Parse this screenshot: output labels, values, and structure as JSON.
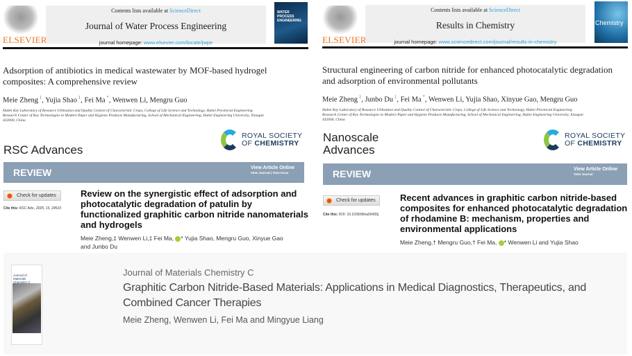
{
  "panels": {
    "jwpe": {
      "publisher": "ELSEVIER",
      "contents_prefix": "Contents lists available at ",
      "sciencedirect": "ScienceDirect",
      "journal": "Journal of Water Process Engineering",
      "homepage_label": "journal homepage: ",
      "homepage_url": "www.elsevier.com/locate/jwpe",
      "cover_text": "WATER PROCESS ENGINEERING",
      "title": "Adsorption of antibiotics in medical wastewater by MOF-based hydrogel composites: A comprehensive review",
      "authors": [
        {
          "name": "Meie Zheng",
          "mark": "1"
        },
        {
          "name": "Yujia Shao",
          "mark": "1"
        },
        {
          "name": "Fei Ma",
          "mark": "*"
        },
        {
          "name": "Wenwen Li",
          "mark": ""
        },
        {
          "name": "Mengru Guo",
          "mark": ""
        }
      ],
      "affiliation": "Hubei Key Laboratory of Resource Utilization and Quality Control of Characteristic Crops, College of Life Science and Technology, Hubei Provincial Engineering Research Center of Key Technologies in Modern Paper and Hygiene Products Manufacturing, School of Mechanical Engineering, Hubei Engineering University, Xiaogan 432000, China"
    },
    "ric": {
      "publisher": "ELSEVIER",
      "contents_prefix": "Contents lists available at ",
      "sciencedirect": "ScienceDirect",
      "journal": "Results in Chemistry",
      "homepage_label": "journal homepage: ",
      "homepage_url": "www.sciencedirect.com/journal/results-in-chemistry",
      "cover_text": "Chemistry",
      "title": "Structural engineering of carbon nitride for enhanced photocatalytic degradation and adsorption of environmental pollutants",
      "authors": [
        {
          "name": "Meie Zheng",
          "mark": "1"
        },
        {
          "name": "Junbo Du",
          "mark": "1"
        },
        {
          "name": "Fei Ma",
          "mark": "*"
        },
        {
          "name": "Wenwen Li",
          "mark": ""
        },
        {
          "name": "Yujia Shao",
          "mark": ""
        },
        {
          "name": "Xinyue Gao",
          "mark": ""
        },
        {
          "name": "Mengru Guo",
          "mark": ""
        }
      ],
      "affiliation": "Hubei Key Laboratory of Resource Utilization and Quality Control of Characteristic Crops, College of Life Science and Technology, Hubei Provincial Engineering Research Center of Key Technologies in Modern Paper and Hygiene Products Manufacturing, School of Mechanical Engineering, Hubei Engineering University, Xiaogan 432000, China"
    },
    "rsc": {
      "journal": "RSC Advances",
      "society_line1": "ROYAL SOCIETY",
      "society_line2_prefix": "OF ",
      "society_line2": "CHEMISTRY",
      "type": "REVIEW",
      "view_online": "View Article Online",
      "view_links": "View Journal | View Issue",
      "check_updates": "Check for updates",
      "cite_label": "Cite this: ",
      "cite": "RSC Adv., 2025, 15, 24510",
      "title": "Review on the synergistic effect of adsorption and photocatalytic degradation of patulin by functionalized graphitic carbon nitride nanomaterials and hydrogels",
      "authors_a": "Meie Zheng,‡ Wenwen Li,‡ Fei Ma,",
      "authors_b": "* Yujia Shao, Mengru Guo, Xinyue Gao and Junbo Du"
    },
    "nsa": {
      "journal_line1": "Nanoscale",
      "journal_line2": "Advances",
      "society_line1": "ROYAL SOCIETY",
      "society_line2_prefix": "OF ",
      "society_line2": "CHEMISTRY",
      "type": "REVIEW",
      "view_online": "View Article Online",
      "view_links": "View Journal",
      "check_updates": "Check for updates",
      "cite_label": "Cite this: ",
      "cite": "DOI: 10.1039/d5na00439j",
      "title": "Recent advances in graphitic carbon nitride-based composites for enhanced photocatalytic degradation of rhodamine B: mechanism, properties and environmental applications",
      "authors_a": "Meie Zheng,† Mengru Guo,† Fei Ma,",
      "authors_b": "* Wenwen Li and Yujia Shao"
    },
    "jmcc": {
      "cover_text": "Journal of Materials Chemistry C",
      "journal": "Journal of Materials Chemistry C",
      "title": "Graphitic Carbon Nitride-Based Materials: Applications in Medical Diagnostics, Therapeutics, and Combined Cancer Therapies",
      "authors": "Meie Zheng, Wenwen Li, Fei Ma and Mingyue Liang"
    }
  },
  "colors": {
    "elsevier": "#e9711c",
    "link": "#2a9fd6",
    "review_bar": "#8b9fb5",
    "rsc_navy": "#1b3a5c"
  }
}
